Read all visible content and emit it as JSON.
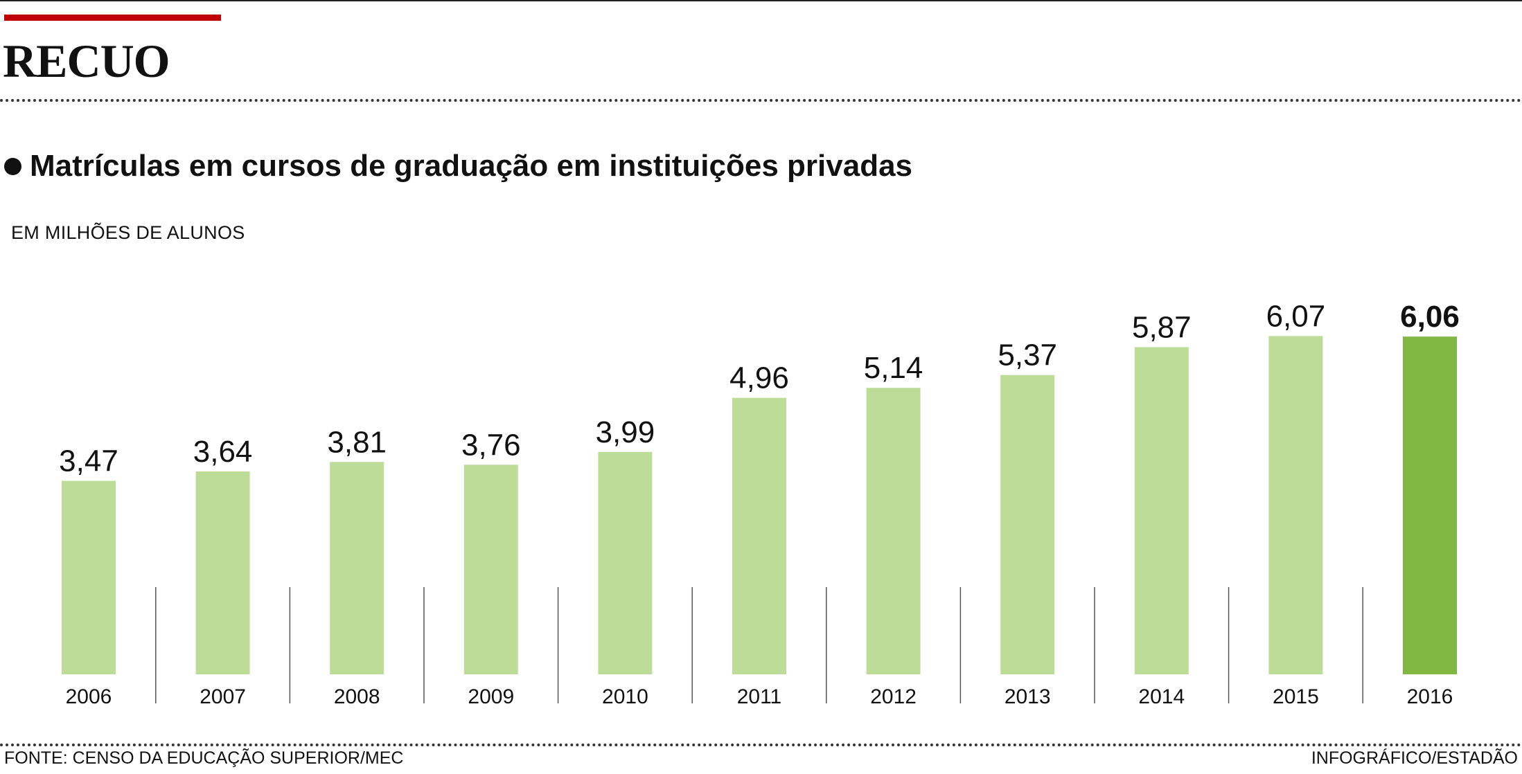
{
  "header": {
    "headline": "RECUO",
    "title": "Matrículas em cursos de graduação em instituições privadas",
    "unit_label": "EM MILHÕES DE ALUNOS"
  },
  "footer": {
    "source": "FONTE: CENSO DA EDUCAÇÃO SUPERIOR/MEC",
    "credit": "INFOGRÁFICO/ESTADÃO"
  },
  "colors": {
    "accent_red": "#c00000",
    "bar": "#bcdc98",
    "bar_highlight": "#80b843"
  },
  "chart_data": {
    "type": "bar",
    "title": "Matrículas em cursos de graduação em instituições privadas",
    "ylabel": "EM MILHÕES DE ALUNOS",
    "xlabel": "",
    "ylim": [
      0,
      6.5
    ],
    "grid": false,
    "categories": [
      "2006",
      "2007",
      "2008",
      "2009",
      "2010",
      "2011",
      "2012",
      "2013",
      "2014",
      "2015",
      "2016"
    ],
    "values": [
      3.47,
      3.64,
      3.81,
      3.76,
      3.99,
      4.96,
      5.14,
      5.37,
      5.87,
      6.07,
      6.06
    ],
    "value_labels": [
      "3,47",
      "3,64",
      "3,81",
      "3,76",
      "3,99",
      "4,96",
      "5,14",
      "5,37",
      "5,87",
      "6,07",
      "6,06"
    ],
    "highlight": "2016"
  }
}
